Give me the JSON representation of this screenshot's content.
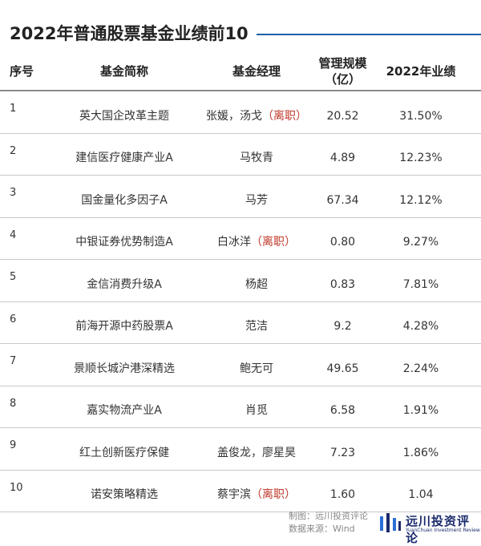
{
  "title": "2022年普通股票基金业绩前10",
  "header": {
    "no": "序号",
    "name": "基金简称",
    "manager": "基金经理",
    "scale_line1": "管理规模",
    "scale_line2": "（亿）",
    "perf": "2022年业绩"
  },
  "rows": [
    {
      "no": "1",
      "name": "英大国企改革主题",
      "manager": "张媛，汤戈",
      "resign": "（离职）",
      "scale": "20.52",
      "perf": "31.50%"
    },
    {
      "no": "2",
      "name": "建信医疗健康产业A",
      "manager": "马牧青",
      "resign": "",
      "scale": "4.89",
      "perf": "12.23%"
    },
    {
      "no": "3",
      "name": "国金量化多因子A",
      "manager": "马芳",
      "resign": "",
      "scale": "67.34",
      "perf": "12.12%"
    },
    {
      "no": "4",
      "name": "中银证券优势制造A",
      "manager": "白冰洋",
      "resign": "（离职）",
      "scale": "0.80",
      "perf": "9.27%"
    },
    {
      "no": "5",
      "name": "金信消费升级A",
      "manager": "杨超",
      "resign": "",
      "scale": "0.83",
      "perf": "7.81%"
    },
    {
      "no": "6",
      "name": "前海开源中药股票A",
      "manager": "范洁",
      "resign": "",
      "scale": "9.2",
      "perf": "4.28%"
    },
    {
      "no": "7",
      "name": "景顺长城沪港深精选",
      "manager": "鲍无可",
      "resign": "",
      "scale": "49.65",
      "perf": "2.24%"
    },
    {
      "no": "8",
      "name": "嘉实物流产业A",
      "manager": "肖觅",
      "resign": "",
      "scale": "6.58",
      "perf": "1.91%"
    },
    {
      "no": "9",
      "name": "红土创新医疗保健",
      "manager": "盖俊龙，廖星昊",
      "resign": "",
      "scale": "7.23",
      "perf": "1.86%"
    },
    {
      "no": "10",
      "name": "诺安策略精选",
      "manager": "蔡宇滨",
      "resign": "（离职）",
      "scale": "1.60",
      "perf": "1.04"
    }
  ],
  "footer": {
    "made_by": "制图：远川投资评论",
    "source": "数据来源：Wind",
    "logo_cn": "远川投资评论",
    "logo_en": "YuanChuan Investment Review"
  },
  "colors": {
    "accent": "#1f5fa8",
    "resign": "#c0392b",
    "logo": "#1a2a6c"
  }
}
